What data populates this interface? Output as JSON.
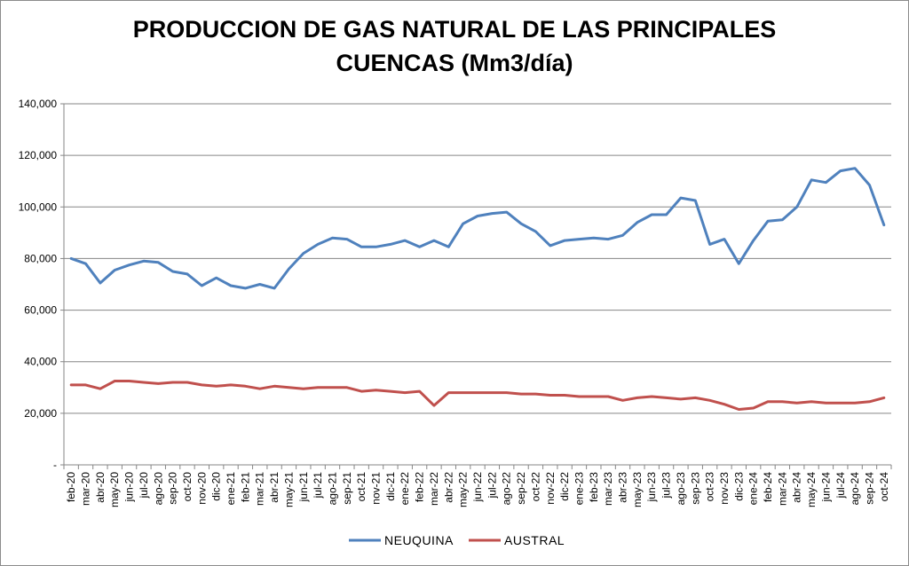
{
  "chart_data": {
    "type": "line",
    "title_line1": "PRODUCCION DE GAS NATURAL DE LAS PRINCIPALES",
    "title_line2": "CUENCAS (Mm3/día)",
    "ylim": [
      0,
      140000
    ],
    "yticks": [
      {
        "value": 0,
        "label": "-"
      },
      {
        "value": 20000,
        "label": "20,000"
      },
      {
        "value": 40000,
        "label": "40,000"
      },
      {
        "value": 60000,
        "label": "60,000"
      },
      {
        "value": 80000,
        "label": "80,000"
      },
      {
        "value": 100000,
        "label": "100,000"
      },
      {
        "value": 120000,
        "label": "120,000"
      },
      {
        "value": 140000,
        "label": "140,000"
      }
    ],
    "grid": true,
    "legend_position": "bottom",
    "categories": [
      "feb-20",
      "mar-20",
      "abr-20",
      "may-20",
      "jun-20",
      "jul-20",
      "ago-20",
      "sep-20",
      "oct-20",
      "nov-20",
      "dic-20",
      "ene-21",
      "feb-21",
      "mar-21",
      "abr-21",
      "may-21",
      "jun-21",
      "jul-21",
      "ago-21",
      "sep-21",
      "oct-21",
      "nov-21",
      "dic-21",
      "ene-22",
      "feb-22",
      "mar-22",
      "abr-22",
      "may-22",
      "jun-22",
      "jul-22",
      "ago-22",
      "sep-22",
      "oct-22",
      "nov-22",
      "dic-22",
      "ene-23",
      "feb-23",
      "mar-23",
      "abr-23",
      "may-23",
      "jun-23",
      "jul-23",
      "ago-23",
      "sep-23",
      "oct-23",
      "nov-23",
      "dic-23",
      "ene-24",
      "feb-24",
      "mar-24",
      "abr-24",
      "may-24",
      "jun-24",
      "jul-24",
      "ago-24",
      "sep-24",
      "oct-24"
    ],
    "series": [
      {
        "name": "NEUQUINA",
        "color": "#4f81bd",
        "values": [
          80000,
          78000,
          70500,
          75500,
          77500,
          79000,
          78500,
          75000,
          74000,
          69500,
          72500,
          69500,
          68500,
          70000,
          68500,
          76000,
          82000,
          85500,
          88000,
          87500,
          84500,
          84500,
          85500,
          87000,
          84500,
          87000,
          84500,
          93500,
          96500,
          97500,
          98000,
          93500,
          90500,
          85000,
          87000,
          87500,
          88000,
          87500,
          89000,
          94000,
          97000,
          97000,
          103500,
          102500,
          85500,
          87500,
          78000,
          87000,
          94500,
          95000,
          100000,
          110500,
          109500,
          114000,
          115000,
          108500,
          93000
        ]
      },
      {
        "name": "AUSTRAL",
        "color": "#c0504d",
        "values": [
          31000,
          31000,
          29500,
          32500,
          32500,
          32000,
          31500,
          32000,
          32000,
          31000,
          30500,
          31000,
          30500,
          29500,
          30500,
          30000,
          29500,
          30000,
          30000,
          30000,
          28500,
          29000,
          28500,
          28000,
          28500,
          23000,
          28000,
          28000,
          28000,
          28000,
          28000,
          27500,
          27500,
          27000,
          27000,
          26500,
          26500,
          26500,
          25000,
          26000,
          26500,
          26000,
          25500,
          26000,
          25000,
          23500,
          21500,
          22000,
          24500,
          24500,
          24000,
          24500,
          24000,
          24000,
          24000,
          24500,
          26000
        ]
      }
    ]
  }
}
